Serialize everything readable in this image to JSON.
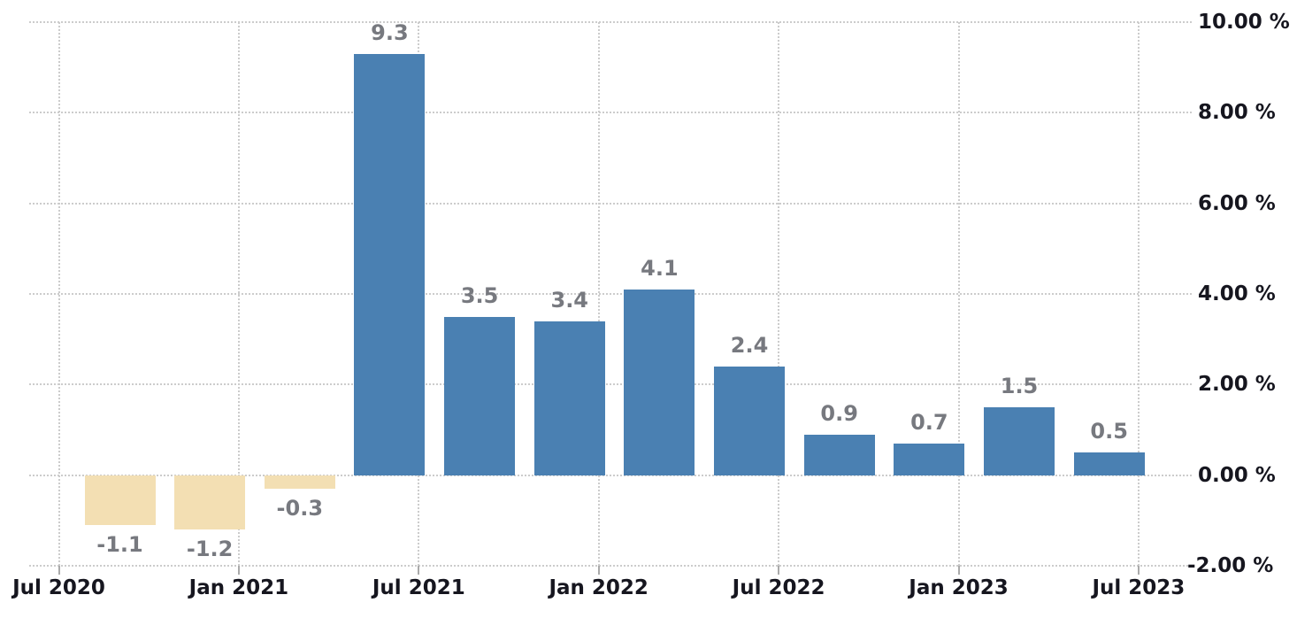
{
  "chart_data": {
    "type": "bar",
    "title": "",
    "points": [
      {
        "label": "-1.1",
        "value": -1.1
      },
      {
        "label": "-1.2",
        "value": -1.2
      },
      {
        "label": "-0.3",
        "value": -0.3
      },
      {
        "label": "9.3",
        "value": 9.3
      },
      {
        "label": "3.5",
        "value": 3.5
      },
      {
        "label": "3.4",
        "value": 3.4
      },
      {
        "label": "4.1",
        "value": 4.1
      },
      {
        "label": "2.4",
        "value": 2.4
      },
      {
        "label": "0.9",
        "value": 0.9
      },
      {
        "label": "0.7",
        "value": 0.7
      },
      {
        "label": "1.5",
        "value": 1.5
      },
      {
        "label": "0.5",
        "value": 0.5
      }
    ],
    "x_axis": {
      "tick_labels": [
        "Jul 2020",
        "Jan 2021",
        "Jul 2021",
        "Jan 2022",
        "Jul 2022",
        "Jan 2023",
        "Jul 2023"
      ]
    },
    "y_axis": {
      "tick_labels": [
        "10.00 %",
        "8.00 %",
        "6.00 %",
        "4.00 %",
        "2.00 %",
        "0.00 %",
        "-2.00 %"
      ],
      "tick_values": [
        10,
        8,
        6,
        4,
        2,
        0,
        -2
      ],
      "range": [
        -2,
        10
      ],
      "side": "right"
    },
    "grid": {
      "horizontal": true,
      "vertical": true,
      "style": "dotted"
    },
    "colors": {
      "positive_bar": "#4a80b2",
      "negative_bar": "#f3dfb3",
      "gridline": "#cccccc",
      "tick": "#aaaaaa",
      "data_label": "#77797f",
      "axis_label": "#16161f",
      "background": "#ffffff"
    }
  }
}
